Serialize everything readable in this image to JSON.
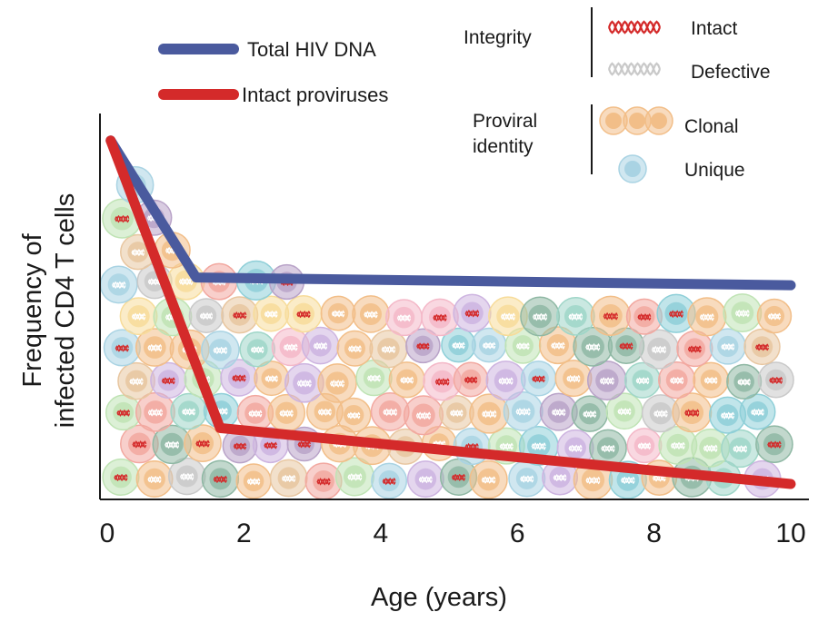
{
  "chart_data": {
    "type": "line",
    "xlabel": "Age (years)",
    "ylabel_lines": [
      "Frequency of",
      "infected CD4 T cells"
    ],
    "xlim": [
      0,
      10
    ],
    "xticks": [
      0,
      2,
      4,
      6,
      8,
      10
    ],
    "ylim": [
      0,
      100
    ],
    "series": [
      {
        "name": "Total HIV DNA",
        "color": "#4a5a9e",
        "x": [
          0.05,
          1.3,
          10
        ],
        "y": [
          93,
          57.5,
          55.5
        ]
      },
      {
        "name": "Intact proviruses",
        "color": "#d42a2a",
        "x": [
          0.05,
          1.65,
          10
        ],
        "y": [
          93,
          18.5,
          4
        ]
      }
    ],
    "legend": {
      "placement": "top",
      "integrity": {
        "title": "Integrity",
        "items": [
          {
            "label": "Intact",
            "icon": "red-provirus-icon"
          },
          {
            "label": "Defective",
            "icon": "gray-provirus-icon"
          }
        ]
      },
      "identity": {
        "title_lines": [
          "Proviral",
          "identity"
        ],
        "items": [
          {
            "label": "Clonal",
            "icon": "clonal-cells-icon"
          },
          {
            "label": "Unique",
            "icon": "unique-cell-icon"
          }
        ]
      }
    },
    "cell_colors": {
      "clonal": "#f2be88",
      "unique": "#a9d3e3",
      "intact_virus": "#d42a2a",
      "defective_virus": "#c9c9c9"
    },
    "grid": false
  }
}
